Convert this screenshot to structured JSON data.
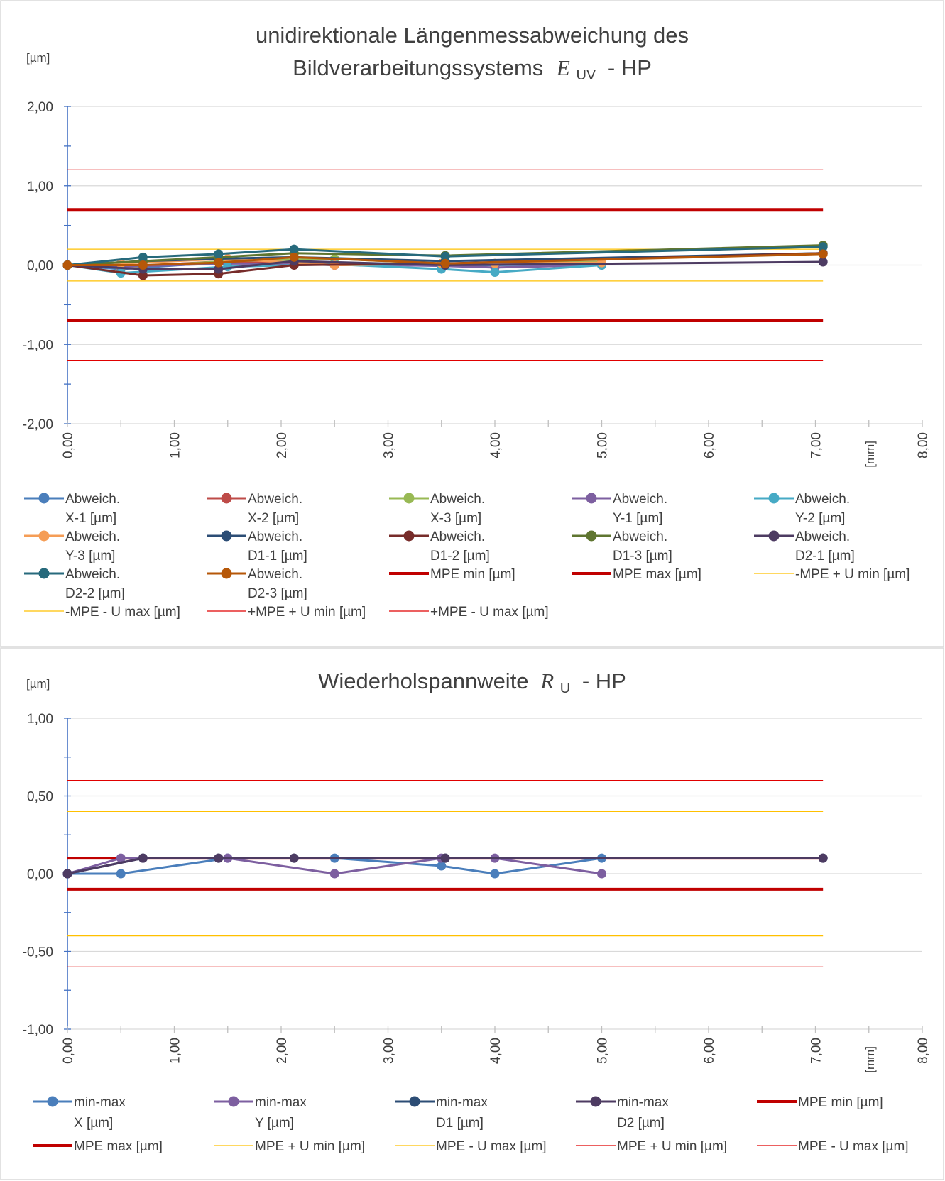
{
  "chart_data": [
    {
      "type": "line",
      "title_main": "unidirektionale Längenmessabweichung des",
      "title_sub_prefix": "Bildverarbeitungssystems",
      "title_symbol": "E",
      "title_symbol_sub": "UV",
      "title_suffix": "- HP",
      "ylabel": "[µm]",
      "xlabel": "[mm]",
      "xlim": [
        0,
        8
      ],
      "ylim": [
        -2,
        2
      ],
      "xticks": [
        "0,00",
        "1,00",
        "2,00",
        "3,00",
        "4,00",
        "5,00",
        "6,00",
        "7,00",
        "8,00"
      ],
      "yticks": [
        "2,00",
        "1,00",
        "0,00",
        "-1,00",
        "-2,00"
      ],
      "grid": true,
      "legend_position": "bottom",
      "series": [
        {
          "name": "Abweich.\nX-1 [µm]",
          "color": "#4a7ebb",
          "marker": true,
          "width": 3,
          "points": [
            [
              0,
              0
            ],
            [
              0.5,
              -0.05
            ],
            [
              1.5,
              0.04
            ],
            [
              2.5,
              0.0
            ],
            [
              3.5,
              0.0
            ],
            [
              4.0,
              0.0
            ],
            [
              5.0,
              0.01
            ]
          ]
        },
        {
          "name": "Abweich.\nX-2 [µm]",
          "color": "#be4b48",
          "marker": true,
          "width": 3,
          "points": [
            [
              0,
              0
            ],
            [
              0.5,
              -0.02
            ],
            [
              1.5,
              0.05
            ],
            [
              2.5,
              0.0
            ],
            [
              3.5,
              0.01
            ],
            [
              4.0,
              0.01
            ],
            [
              5.0,
              0.02
            ]
          ]
        },
        {
          "name": "Abweich.\nX-3 [µm]",
          "color": "#98b954",
          "marker": true,
          "width": 3,
          "points": [
            [
              0,
              0
            ],
            [
              0.5,
              -0.03
            ],
            [
              1.5,
              0.05
            ],
            [
              2.5,
              0.08
            ],
            [
              3.5,
              0.02
            ],
            [
              4.0,
              0.02
            ],
            [
              5.0,
              0.04
            ]
          ]
        },
        {
          "name": "Abweich.\nY-1 [µm]",
          "color": "#7d5fa0",
          "marker": true,
          "width": 3,
          "points": [
            [
              0,
              0
            ],
            [
              0.5,
              -0.02
            ],
            [
              1.5,
              0.02
            ],
            [
              2.5,
              0.01
            ],
            [
              3.5,
              -0.01
            ],
            [
              4.0,
              -0.03
            ],
            [
              5.0,
              0.0
            ]
          ]
        },
        {
          "name": "Abweich.\nY-2 [µm]",
          "color": "#46aac5",
          "marker": true,
          "width": 3,
          "points": [
            [
              0,
              0
            ],
            [
              0.5,
              -0.1
            ],
            [
              1.5,
              -0.02
            ],
            [
              2.5,
              0.01
            ],
            [
              3.5,
              -0.05
            ],
            [
              4.0,
              -0.09
            ],
            [
              5.0,
              0.0
            ]
          ]
        },
        {
          "name": "Abweich.\nY-3 [µm]",
          "color": "#f59d56",
          "marker": true,
          "width": 3,
          "points": [
            [
              0,
              0
            ],
            [
              0.5,
              0.02
            ],
            [
              1.5,
              0.08
            ],
            [
              2.5,
              0.0
            ],
            [
              3.5,
              0.02
            ],
            [
              4.0,
              0.02
            ],
            [
              5.0,
              0.03
            ]
          ]
        },
        {
          "name": "Abweich.\nD1-1 [µm]",
          "color": "#2c4d75",
          "marker": true,
          "width": 3,
          "points": [
            [
              0,
              0
            ],
            [
              0.707,
              0.05
            ],
            [
              1.414,
              0.08
            ],
            [
              2.121,
              0.1
            ],
            [
              3.536,
              0.05
            ],
            [
              7.071,
              0.15
            ]
          ]
        },
        {
          "name": "Abweich.\nD1-2 [µm]",
          "color": "#772c2a",
          "marker": true,
          "width": 3,
          "points": [
            [
              0,
              0
            ],
            [
              0.707,
              -0.13
            ],
            [
              1.414,
              -0.11
            ],
            [
              2.121,
              0.0
            ],
            [
              3.536,
              0.02
            ],
            [
              7.071,
              0.15
            ]
          ]
        },
        {
          "name": "Abweich.\nD1-3 [µm]",
          "color": "#5f7530",
          "marker": true,
          "width": 3,
          "points": [
            [
              0,
              0
            ],
            [
              0.707,
              0.05
            ],
            [
              1.414,
              0.1
            ],
            [
              2.121,
              0.15
            ],
            [
              3.536,
              0.12
            ],
            [
              7.071,
              0.25
            ]
          ]
        },
        {
          "name": "Abweich.\nD2-1 [µm]",
          "color": "#4d3b62",
          "marker": true,
          "width": 3,
          "points": [
            [
              0,
              0
            ],
            [
              0.707,
              -0.05
            ],
            [
              1.414,
              -0.05
            ],
            [
              2.121,
              0.05
            ],
            [
              3.536,
              0.0
            ],
            [
              7.071,
              0.04
            ]
          ]
        },
        {
          "name": "Abweich.\nD2-2 [µm]",
          "color": "#276a7c",
          "marker": true,
          "width": 3,
          "points": [
            [
              0,
              0
            ],
            [
              0.707,
              0.1
            ],
            [
              1.414,
              0.14
            ],
            [
              2.121,
              0.2
            ],
            [
              3.536,
              0.11
            ],
            [
              7.071,
              0.23
            ]
          ]
        },
        {
          "name": "Abweich.\nD2-3 [µm]",
          "color": "#b65708",
          "marker": true,
          "width": 3,
          "points": [
            [
              0,
              0
            ],
            [
              0.707,
              0.0
            ],
            [
              1.414,
              0.03
            ],
            [
              2.121,
              0.1
            ],
            [
              3.536,
              0.02
            ],
            [
              7.071,
              0.14
            ]
          ]
        },
        {
          "name": "MPE min [µm]",
          "color": "#c00000",
          "marker": false,
          "width": 4,
          "points": [
            [
              0,
              -0.7
            ],
            [
              7.071,
              -0.7
            ]
          ]
        },
        {
          "name": "MPE max [µm]",
          "color": "#c00000",
          "marker": false,
          "width": 4,
          "points": [
            [
              0,
              0.7
            ],
            [
              7.071,
              0.7
            ]
          ]
        },
        {
          "name": "-MPE + U min [µm]",
          "color": "#ffc000",
          "marker": false,
          "width": 1.2,
          "points": [
            [
              0,
              0.2
            ],
            [
              7.071,
              0.2
            ]
          ]
        },
        {
          "name": "-MPE - U max [µm]",
          "color": "#ffc000",
          "marker": false,
          "width": 1.2,
          "points": [
            [
              0,
              -0.2
            ],
            [
              7.071,
              -0.2
            ]
          ]
        },
        {
          "name": "+MPE + U min [µm]",
          "color": "#e00000",
          "marker": false,
          "width": 1.2,
          "points": [
            [
              0,
              1.2
            ],
            [
              7.071,
              1.2
            ]
          ]
        },
        {
          "name": "+MPE - U max [µm]",
          "color": "#e00000",
          "marker": false,
          "width": 1.2,
          "points": [
            [
              0,
              -1.2
            ],
            [
              7.071,
              -1.2
            ]
          ]
        }
      ]
    },
    {
      "type": "line",
      "title_main": "",
      "title_sub_prefix": "Wiederholspannweite",
      "title_symbol": "R",
      "title_symbol_sub": "U",
      "title_suffix": "- HP",
      "ylabel": "[µm]",
      "xlabel": "[mm]",
      "xlim": [
        0,
        8
      ],
      "ylim": [
        -1,
        1
      ],
      "xticks": [
        "0,00",
        "1,00",
        "2,00",
        "3,00",
        "4,00",
        "5,00",
        "6,00",
        "7,00",
        "8,00"
      ],
      "yticks": [
        "1,00",
        "0,50",
        "0,00",
        "-0,50",
        "-1,00"
      ],
      "grid": true,
      "legend_position": "bottom",
      "series": [
        {
          "name": "min-max\nX [µm]",
          "color": "#4a7ebb",
          "marker": true,
          "width": 3,
          "points": [
            [
              0,
              0
            ],
            [
              0.5,
              0.0
            ],
            [
              1.5,
              0.1
            ],
            [
              2.5,
              0.1
            ],
            [
              3.5,
              0.05
            ],
            [
              4.0,
              0.0
            ],
            [
              5.0,
              0.1
            ]
          ]
        },
        {
          "name": "min-max\nY [µm]",
          "color": "#7d5fa0",
          "marker": true,
          "width": 3,
          "points": [
            [
              0,
              0
            ],
            [
              0.5,
              0.1
            ],
            [
              1.5,
              0.1
            ],
            [
              2.5,
              0.0
            ],
            [
              3.5,
              0.1
            ],
            [
              4.0,
              0.1
            ],
            [
              5.0,
              0.0
            ]
          ]
        },
        {
          "name": "min-max\nD1 [µm]",
          "color": "#2c4d75",
          "marker": true,
          "width": 3,
          "points": [
            [
              0,
              0
            ],
            [
              0.707,
              0.1
            ],
            [
              1.414,
              0.1
            ],
            [
              2.121,
              0.1
            ],
            [
              3.536,
              0.1
            ],
            [
              7.071,
              0.1
            ]
          ]
        },
        {
          "name": "min-max\nD2 [µm]",
          "color": "#4d3b62",
          "marker": true,
          "width": 3,
          "points": [
            [
              0,
              0
            ],
            [
              0.707,
              0.1
            ],
            [
              1.414,
              0.1
            ],
            [
              2.121,
              0.1
            ],
            [
              3.536,
              0.1
            ],
            [
              7.071,
              0.1
            ]
          ]
        },
        {
          "name": "MPE min [µm]",
          "color": "#c00000",
          "marker": false,
          "width": 4,
          "points": [
            [
              0,
              -0.1
            ],
            [
              7.071,
              -0.1
            ]
          ]
        },
        {
          "name": "MPE max [µm]",
          "color": "#c00000",
          "marker": false,
          "width": 4,
          "points": [
            [
              0,
              0.1
            ],
            [
              7.071,
              0.1
            ]
          ]
        },
        {
          "name": "MPE + U min [µm]",
          "color": "#ffc000",
          "marker": false,
          "width": 1.2,
          "points": [
            [
              0,
              0.4
            ],
            [
              7.071,
              0.4
            ]
          ]
        },
        {
          "name": "MPE - U max [µm]",
          "color": "#ffc000",
          "marker": false,
          "width": 1.2,
          "points": [
            [
              0,
              -0.4
            ],
            [
              7.071,
              -0.4
            ]
          ]
        },
        {
          "name": "MPE + U min [µm]",
          "color": "#e00000",
          "marker": false,
          "width": 1.2,
          "points": [
            [
              0,
              0.6
            ],
            [
              7.071,
              0.6
            ]
          ]
        },
        {
          "name": "MPE - U max [µm]",
          "color": "#e00000",
          "marker": false,
          "width": 1.2,
          "points": [
            [
              0,
              -0.6
            ],
            [
              7.071,
              -0.6
            ]
          ]
        }
      ]
    }
  ]
}
